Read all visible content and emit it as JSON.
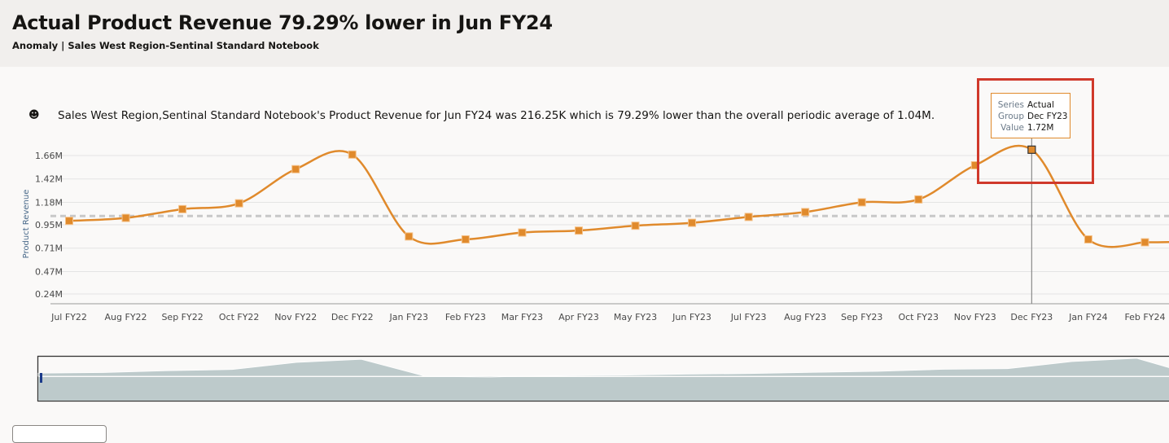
{
  "header": {
    "title": "Actual Product Revenue 79.29% lower in Jun FY24",
    "subtitle": "Anomaly | Sales West Region-Sentinal Standard Notebook"
  },
  "description": {
    "icon": "anomaly-robot-icon",
    "text": "Sales West Region,Sentinal Standard Notebook's Product Revenue for Jun FY24 was 216.25K which is 79.29% lower than the overall periodic average of 1.04M."
  },
  "tooltip": {
    "series_label": "Series",
    "series": "Actual",
    "group_label": "Group",
    "group": "Dec FY23",
    "value_label": "Value",
    "value": "1.72M"
  },
  "chart_data": {
    "type": "line",
    "ylabel": "Product Revenue",
    "xlabel": "",
    "yticks": [
      "1.66M",
      "1.42M",
      "1.18M",
      "0.95M",
      "0.71M",
      "0.47M",
      "0.24M"
    ],
    "ytick_values": [
      1.66,
      1.42,
      1.18,
      0.95,
      0.71,
      0.47,
      0.24
    ],
    "ylim": [
      0.12,
      1.9
    ],
    "grid": true,
    "categories": [
      "Jul FY22",
      "Aug FY22",
      "Sep FY22",
      "Oct FY22",
      "Nov FY22",
      "Dec FY22",
      "Jan FY23",
      "Feb FY23",
      "Mar FY23",
      "Apr FY23",
      "May FY23",
      "Jun FY23",
      "Jul FY23",
      "Aug FY23",
      "Sep FY23",
      "Oct FY23",
      "Nov FY23",
      "Dec FY23",
      "Jan FY24",
      "Feb FY24"
    ],
    "series": [
      {
        "name": "Actual",
        "color": "#e08a2c",
        "values": [
          0.99,
          1.02,
          1.11,
          1.17,
          1.52,
          1.67,
          0.83,
          0.8,
          0.87,
          0.89,
          0.94,
          0.97,
          1.03,
          1.08,
          1.18,
          1.21,
          1.56,
          1.72,
          0.8,
          0.77
        ]
      }
    ],
    "average": {
      "value": 1.04,
      "color": "#c8c8c8"
    },
    "highlighted": "Dec FY23"
  }
}
